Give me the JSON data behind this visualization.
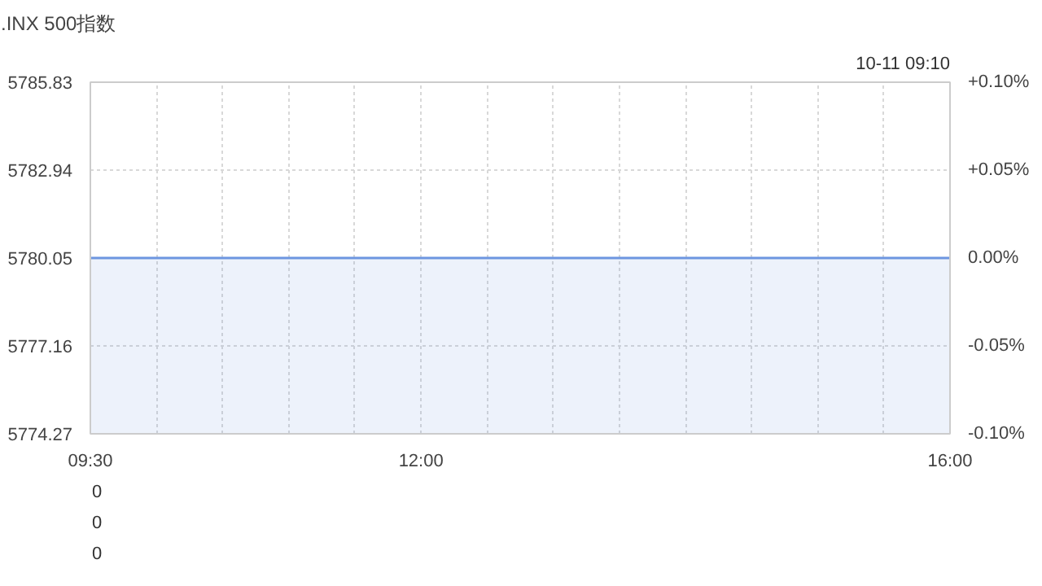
{
  "chart_data": [
    {
      "type": "area",
      "title": ".INX 500指数",
      "annotations": [
        "10-11 09:10"
      ],
      "x": [
        9.5,
        16
      ],
      "series": [
        {
          "color": "#6d96e0",
          "values": [
            5780.05,
            5780.05
          ]
        }
      ],
      "xlim": [
        9.5,
        16
      ],
      "xticks": [
        {
          "value": 9.5,
          "label": "09:30"
        },
        {
          "value": 10,
          "label": null
        },
        {
          "value": 10.5,
          "label": null
        },
        {
          "value": 11,
          "label": null
        },
        {
          "value": 11.5,
          "label": null
        },
        {
          "value": 12,
          "label": "12:00"
        },
        {
          "value": 12.5,
          "label": null
        },
        {
          "value": 13,
          "label": null
        },
        {
          "value": 13.5,
          "label": null
        },
        {
          "value": 14,
          "label": null
        },
        {
          "value": 14.5,
          "label": null
        },
        {
          "value": 15,
          "label": null
        },
        {
          "value": 15.5,
          "label": null
        },
        {
          "value": 16,
          "label": "16:00"
        }
      ],
      "ylim": [
        5774.27,
        5785.83
      ],
      "yticks": [
        5774.27,
        5777.16,
        5780.05,
        5782.94,
        5785.83
      ],
      "y2lim": [
        -0.1,
        0.1
      ],
      "y2ticks": [
        {
          "value": -0.1,
          "label": "-0.10%"
        },
        {
          "value": -0.05,
          "label": "-0.05%"
        },
        {
          "value": 0,
          "label": "0.00%"
        },
        {
          "value": 0.05,
          "label": "+0.05%"
        },
        {
          "value": 0.1,
          "label": "+0.10%"
        }
      ],
      "grid": true
    },
    {
      "type": "other",
      "annotations": [
        "0",
        "0",
        "0"
      ]
    }
  ]
}
